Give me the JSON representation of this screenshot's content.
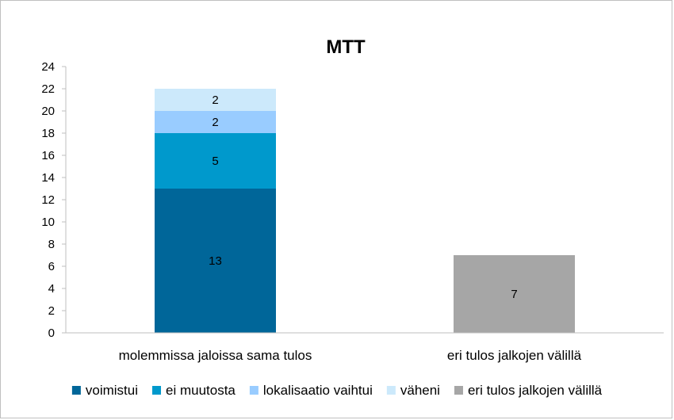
{
  "chart_data": {
    "type": "bar",
    "stacked": true,
    "title": "MTT",
    "xlabel": "",
    "ylabel": "",
    "ylim": [
      0,
      24
    ],
    "ytick_step": 2,
    "grid": false,
    "legend_position": "bottom",
    "categories": [
      "molemmissa jaloissa sama tulos",
      "eri tulos jalkojen välillä"
    ],
    "series": [
      {
        "name": "voimistui",
        "color": "#006699",
        "values": [
          13,
          0
        ]
      },
      {
        "name": "ei muutosta",
        "color": "#0099cc",
        "values": [
          5,
          0
        ]
      },
      {
        "name": "lokalisaatio vaihtui",
        "color": "#99ccff",
        "values": [
          2,
          0
        ]
      },
      {
        "name": "väheni",
        "color": "#cce9fb",
        "values": [
          2,
          0
        ]
      },
      {
        "name": "eri tulos jalkojen välillä",
        "color": "#a6a6a6",
        "values": [
          0,
          7
        ]
      }
    ]
  }
}
